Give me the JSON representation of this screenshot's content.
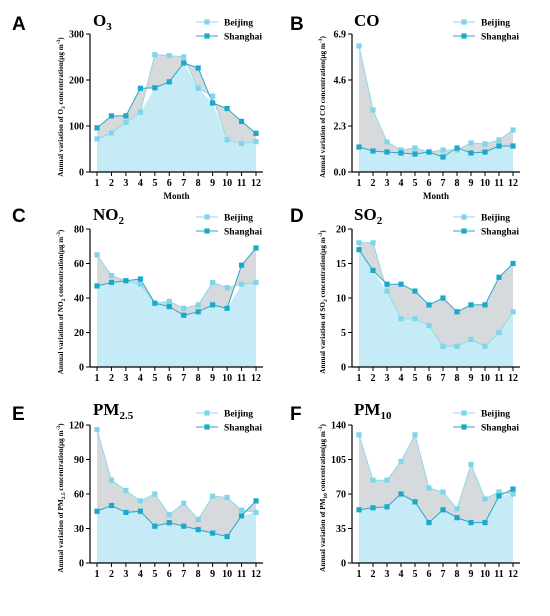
{
  "colors": {
    "beijing_line": "#8fd8e8",
    "beijing_marker": "#7fd6ea",
    "shanghai_line": "#2aa6c8",
    "shanghai_marker": "#1aa9cc",
    "fill_light": "#bfeaf5",
    "fill_gray": "#c9ced2"
  },
  "chart_data": [
    {
      "panel": "A",
      "type": "line",
      "title": "O3",
      "title_main": "O",
      "title_sub": "3",
      "xlabel": "Month",
      "ylabel_parts": [
        "Annual variation of O",
        "3",
        " concentration(μg m",
        "-3",
        ")"
      ],
      "x": [
        1,
        2,
        3,
        4,
        5,
        6,
        7,
        8,
        9,
        10,
        11,
        12
      ],
      "ylim": [
        0,
        300
      ],
      "yticks": [
        "0",
        "100",
        "200",
        "300"
      ],
      "ytick_values": [
        0,
        100,
        200,
        300
      ],
      "legend": [
        "Beijing",
        "Shanghai"
      ],
      "series": [
        {
          "name": "Beijing",
          "values": [
            72,
            85,
            108,
            130,
            255,
            253,
            250,
            182,
            165,
            70,
            62,
            66
          ]
        },
        {
          "name": "Shanghai",
          "values": [
            96,
            122,
            122,
            182,
            183,
            196,
            237,
            226,
            150,
            138,
            110,
            84
          ]
        }
      ]
    },
    {
      "panel": "B",
      "type": "line",
      "title": "CO",
      "title_main": "CO",
      "title_sub": "",
      "xlabel": "Month",
      "ylabel_parts": [
        "Annual variation of CO concentration(μg m",
        "-3",
        ")",
        "",
        ""
      ],
      "x": [
        1,
        2,
        3,
        4,
        5,
        6,
        7,
        8,
        9,
        10,
        11,
        12
      ],
      "ylim": [
        0,
        6.9
      ],
      "yticks": [
        "0.0",
        "2.3",
        "4.6",
        "6.9"
      ],
      "ytick_values": [
        0,
        2.3,
        4.6,
        6.9
      ],
      "legend": [
        "Beijing",
        "Shanghai"
      ],
      "series": [
        {
          "name": "Beijing",
          "values": [
            6.3,
            3.1,
            1.5,
            1.1,
            1.2,
            1.0,
            1.1,
            1.1,
            1.45,
            1.4,
            1.6,
            2.1
          ]
        },
        {
          "name": "Shanghai",
          "values": [
            1.25,
            1.05,
            1.0,
            0.95,
            0.9,
            1.0,
            0.75,
            1.2,
            0.95,
            1.0,
            1.3,
            1.3
          ]
        }
      ]
    },
    {
      "panel": "C",
      "type": "line",
      "title": "NO2",
      "title_main": "NO",
      "title_sub": "2",
      "xlabel": "",
      "ylabel_parts": [
        "Annual variation of NO",
        "2",
        " concentration(μg m",
        "-3",
        ")"
      ],
      "x": [
        1,
        2,
        3,
        4,
        5,
        6,
        7,
        8,
        9,
        10,
        11,
        12
      ],
      "ylim": [
        0,
        80
      ],
      "yticks": [
        "0",
        "20",
        "40",
        "60",
        "80"
      ],
      "ytick_values": [
        0,
        20,
        40,
        60,
        80
      ],
      "legend": [
        "Beijing",
        "Shanghai"
      ],
      "series": [
        {
          "name": "Beijing",
          "values": [
            65,
            53,
            50,
            48,
            37,
            38,
            34,
            36,
            49,
            46,
            48,
            49
          ]
        },
        {
          "name": "Shanghai",
          "values": [
            47,
            49,
            50,
            51,
            37,
            35,
            30,
            32,
            36,
            34,
            59,
            69
          ]
        }
      ]
    },
    {
      "panel": "D",
      "type": "line",
      "title": "SO2",
      "title_main": "SO",
      "title_sub": "2",
      "xlabel": "",
      "ylabel_parts": [
        "Annual variation of SO",
        "2",
        " concentration(μg m",
        "-3",
        ")"
      ],
      "x": [
        1,
        2,
        3,
        4,
        5,
        6,
        7,
        8,
        9,
        10,
        11,
        12
      ],
      "ylim": [
        0,
        20
      ],
      "yticks": [
        "0",
        "5",
        "10",
        "15",
        "20"
      ],
      "ytick_values": [
        0,
        5,
        10,
        15,
        20
      ],
      "legend": [
        "Beijing",
        "Shanghai"
      ],
      "series": [
        {
          "name": "Beijing",
          "values": [
            18,
            18,
            11,
            7,
            7,
            6,
            3,
            3,
            4,
            3,
            5,
            8
          ]
        },
        {
          "name": "Shanghai",
          "values": [
            17,
            14,
            12,
            12,
            11,
            9,
            10,
            8,
            9,
            9,
            13,
            15
          ]
        }
      ]
    },
    {
      "panel": "E",
      "type": "line",
      "title": "PM2.5",
      "title_main": "PM",
      "title_sub": "2.5",
      "xlabel": "",
      "ylabel_parts": [
        "Annual variation of PM",
        "2.5",
        " concentration(μg m",
        "-3",
        ")"
      ],
      "x": [
        1,
        2,
        3,
        4,
        5,
        6,
        7,
        8,
        9,
        10,
        11,
        12
      ],
      "ylim": [
        0,
        120
      ],
      "yticks": [
        "0",
        "30",
        "60",
        "90",
        "120"
      ],
      "ytick_values": [
        0,
        30,
        60,
        90,
        120
      ],
      "legend": [
        "Beijing",
        "Shanghai"
      ],
      "series": [
        {
          "name": "Beijing",
          "values": [
            116,
            72,
            63,
            54,
            60,
            42,
            52,
            38,
            58,
            57,
            46,
            44
          ]
        },
        {
          "name": "Shanghai",
          "values": [
            45,
            50,
            44,
            45,
            32,
            35,
            32,
            29,
            26,
            23,
            41,
            54
          ]
        }
      ]
    },
    {
      "panel": "F",
      "type": "line",
      "title": "PM10",
      "title_main": "PM",
      "title_sub": "10",
      "xlabel": "",
      "ylabel_parts": [
        "Annual variation of PM",
        "10",
        " concentration(μg m",
        "-3",
        ")"
      ],
      "x": [
        1,
        2,
        3,
        4,
        5,
        6,
        7,
        8,
        9,
        10,
        11,
        12
      ],
      "ylim": [
        0,
        140
      ],
      "yticks": [
        "0",
        "35",
        "70",
        "105",
        "140"
      ],
      "ytick_values": [
        0,
        35,
        70,
        105,
        140
      ],
      "legend": [
        "Beijing",
        "Shanghai"
      ],
      "series": [
        {
          "name": "Beijing",
          "values": [
            130,
            84,
            84,
            103,
            130,
            76,
            72,
            55,
            100,
            65,
            72,
            70
          ]
        },
        {
          "name": "Shanghai",
          "values": [
            54,
            56,
            57,
            70,
            62,
            41,
            54,
            46,
            41,
            41,
            68,
            75
          ]
        }
      ]
    }
  ]
}
